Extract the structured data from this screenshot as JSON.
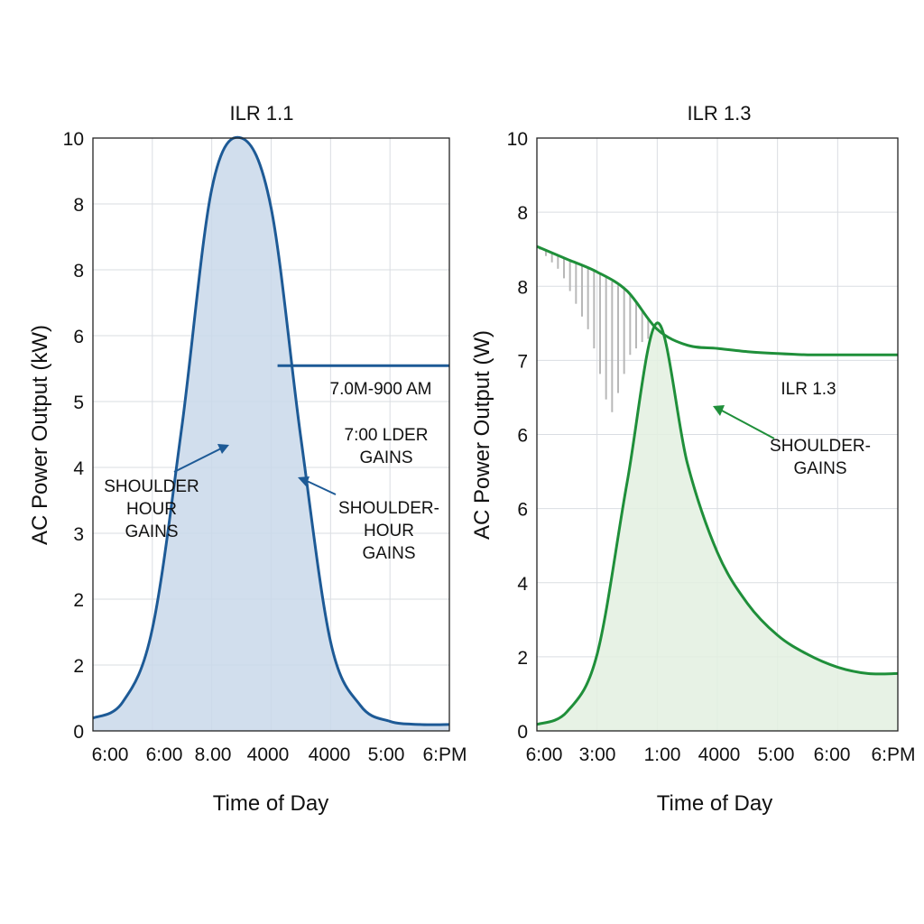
{
  "chart_data": [
    {
      "type": "area",
      "title": "ILR 1.1",
      "xlabel": "Time of Day",
      "ylabel": "AC Power Output (kW)",
      "x_tick_labels": [
        "6:00",
        "6:00",
        "8.00",
        "4000",
        "4000",
        "5:00",
        "6:PM"
      ],
      "y_tick_labels": [
        "0",
        "2",
        "2",
        "3",
        "4",
        "5",
        "6",
        "8",
        "8",
        "10"
      ],
      "grid": true,
      "color": "#1d5a96",
      "fill_color": "#c9d8ea",
      "series": [
        {
          "x": [
            0,
            0.5,
            1,
            1.5,
            2,
            2.5,
            3,
            3.5,
            4,
            4.5,
            5,
            5.5,
            6
          ],
          "values": [
            0.2,
            0.45,
            1.6,
            4.8,
            8.5,
            9.3,
            8.2,
            4.6,
            1.4,
            0.4,
            0.15,
            0.1,
            0.1
          ]
        }
      ],
      "threshold": {
        "value": 5.8,
        "x_from": 2.5,
        "x_to": 6,
        "label": "7.0M-900 AM",
        "color": "#1d5a96"
      },
      "annotations": [
        {
          "lines": [
            "7:00 LDER",
            "GAINS"
          ],
          "color": "#1d5a96"
        },
        {
          "lines": [
            "SHOULDER",
            "HOUR",
            "GAINS"
          ],
          "color": "#111111"
        },
        {
          "lines": [
            "SHOULDER-",
            "HOUR",
            "GAINS"
          ],
          "color": "#111111"
        }
      ]
    },
    {
      "type": "area",
      "title": "ILR 1.3",
      "xlabel": "Time of Day",
      "ylabel": "AC Power Output (W)",
      "x_tick_labels": [
        "6:00",
        "3:00",
        "1:00",
        "4000",
        "5:00",
        "6:00",
        "6:PM"
      ],
      "y_tick_labels": [
        "0",
        "2",
        "4",
        "6",
        "6",
        "7",
        "8",
        "8",
        "10"
      ],
      "grid": true,
      "color": "#1f8f3a",
      "fill_color": "#e3f0e0",
      "series": [
        {
          "name": "ILR 1.3",
          "x": [
            0,
            0.5,
            1,
            1.5,
            2,
            2.5,
            3,
            3.5,
            4,
            4.5,
            5,
            5.5,
            6
          ],
          "values": [
            0.1,
            0.3,
            1.2,
            3.9,
            6.4,
            4.2,
            2.8,
            2.0,
            1.5,
            1.2,
            1.0,
            0.9,
            0.9
          ]
        },
        {
          "x": [
            0,
            0.5,
            1,
            1.5,
            2,
            2.5,
            3,
            3.5,
            4,
            4.5,
            5,
            5.5,
            6
          ],
          "values": [
            7.6,
            7.4,
            7.2,
            6.9,
            6.3,
            6.05,
            6.0,
            5.95,
            5.92,
            5.9,
            5.9,
            5.9,
            5.9
          ]
        }
      ],
      "clipping_bars": {
        "x": [
          0.05,
          0.15,
          0.25,
          0.35,
          0.45,
          0.55,
          0.65,
          0.75,
          0.85,
          0.95,
          1.05,
          1.15,
          1.25,
          1.35,
          1.45,
          1.55,
          1.65,
          1.75,
          1.85
        ],
        "low": [
          7.55,
          7.45,
          7.35,
          7.25,
          7.1,
          6.9,
          6.7,
          6.5,
          6.3,
          6.0,
          5.6,
          5.2,
          5.0,
          5.3,
          5.6,
          5.9,
          6.0,
          6.1,
          6.15
        ],
        "color": "#b8b8b8"
      },
      "annotations": [
        {
          "lines": [
            "ILR 1.3"
          ],
          "color": "#1f8f3a"
        },
        {
          "lines": [
            "SHOULDER-",
            "GAINS"
          ],
          "color": "#1f8f3a"
        }
      ]
    }
  ]
}
